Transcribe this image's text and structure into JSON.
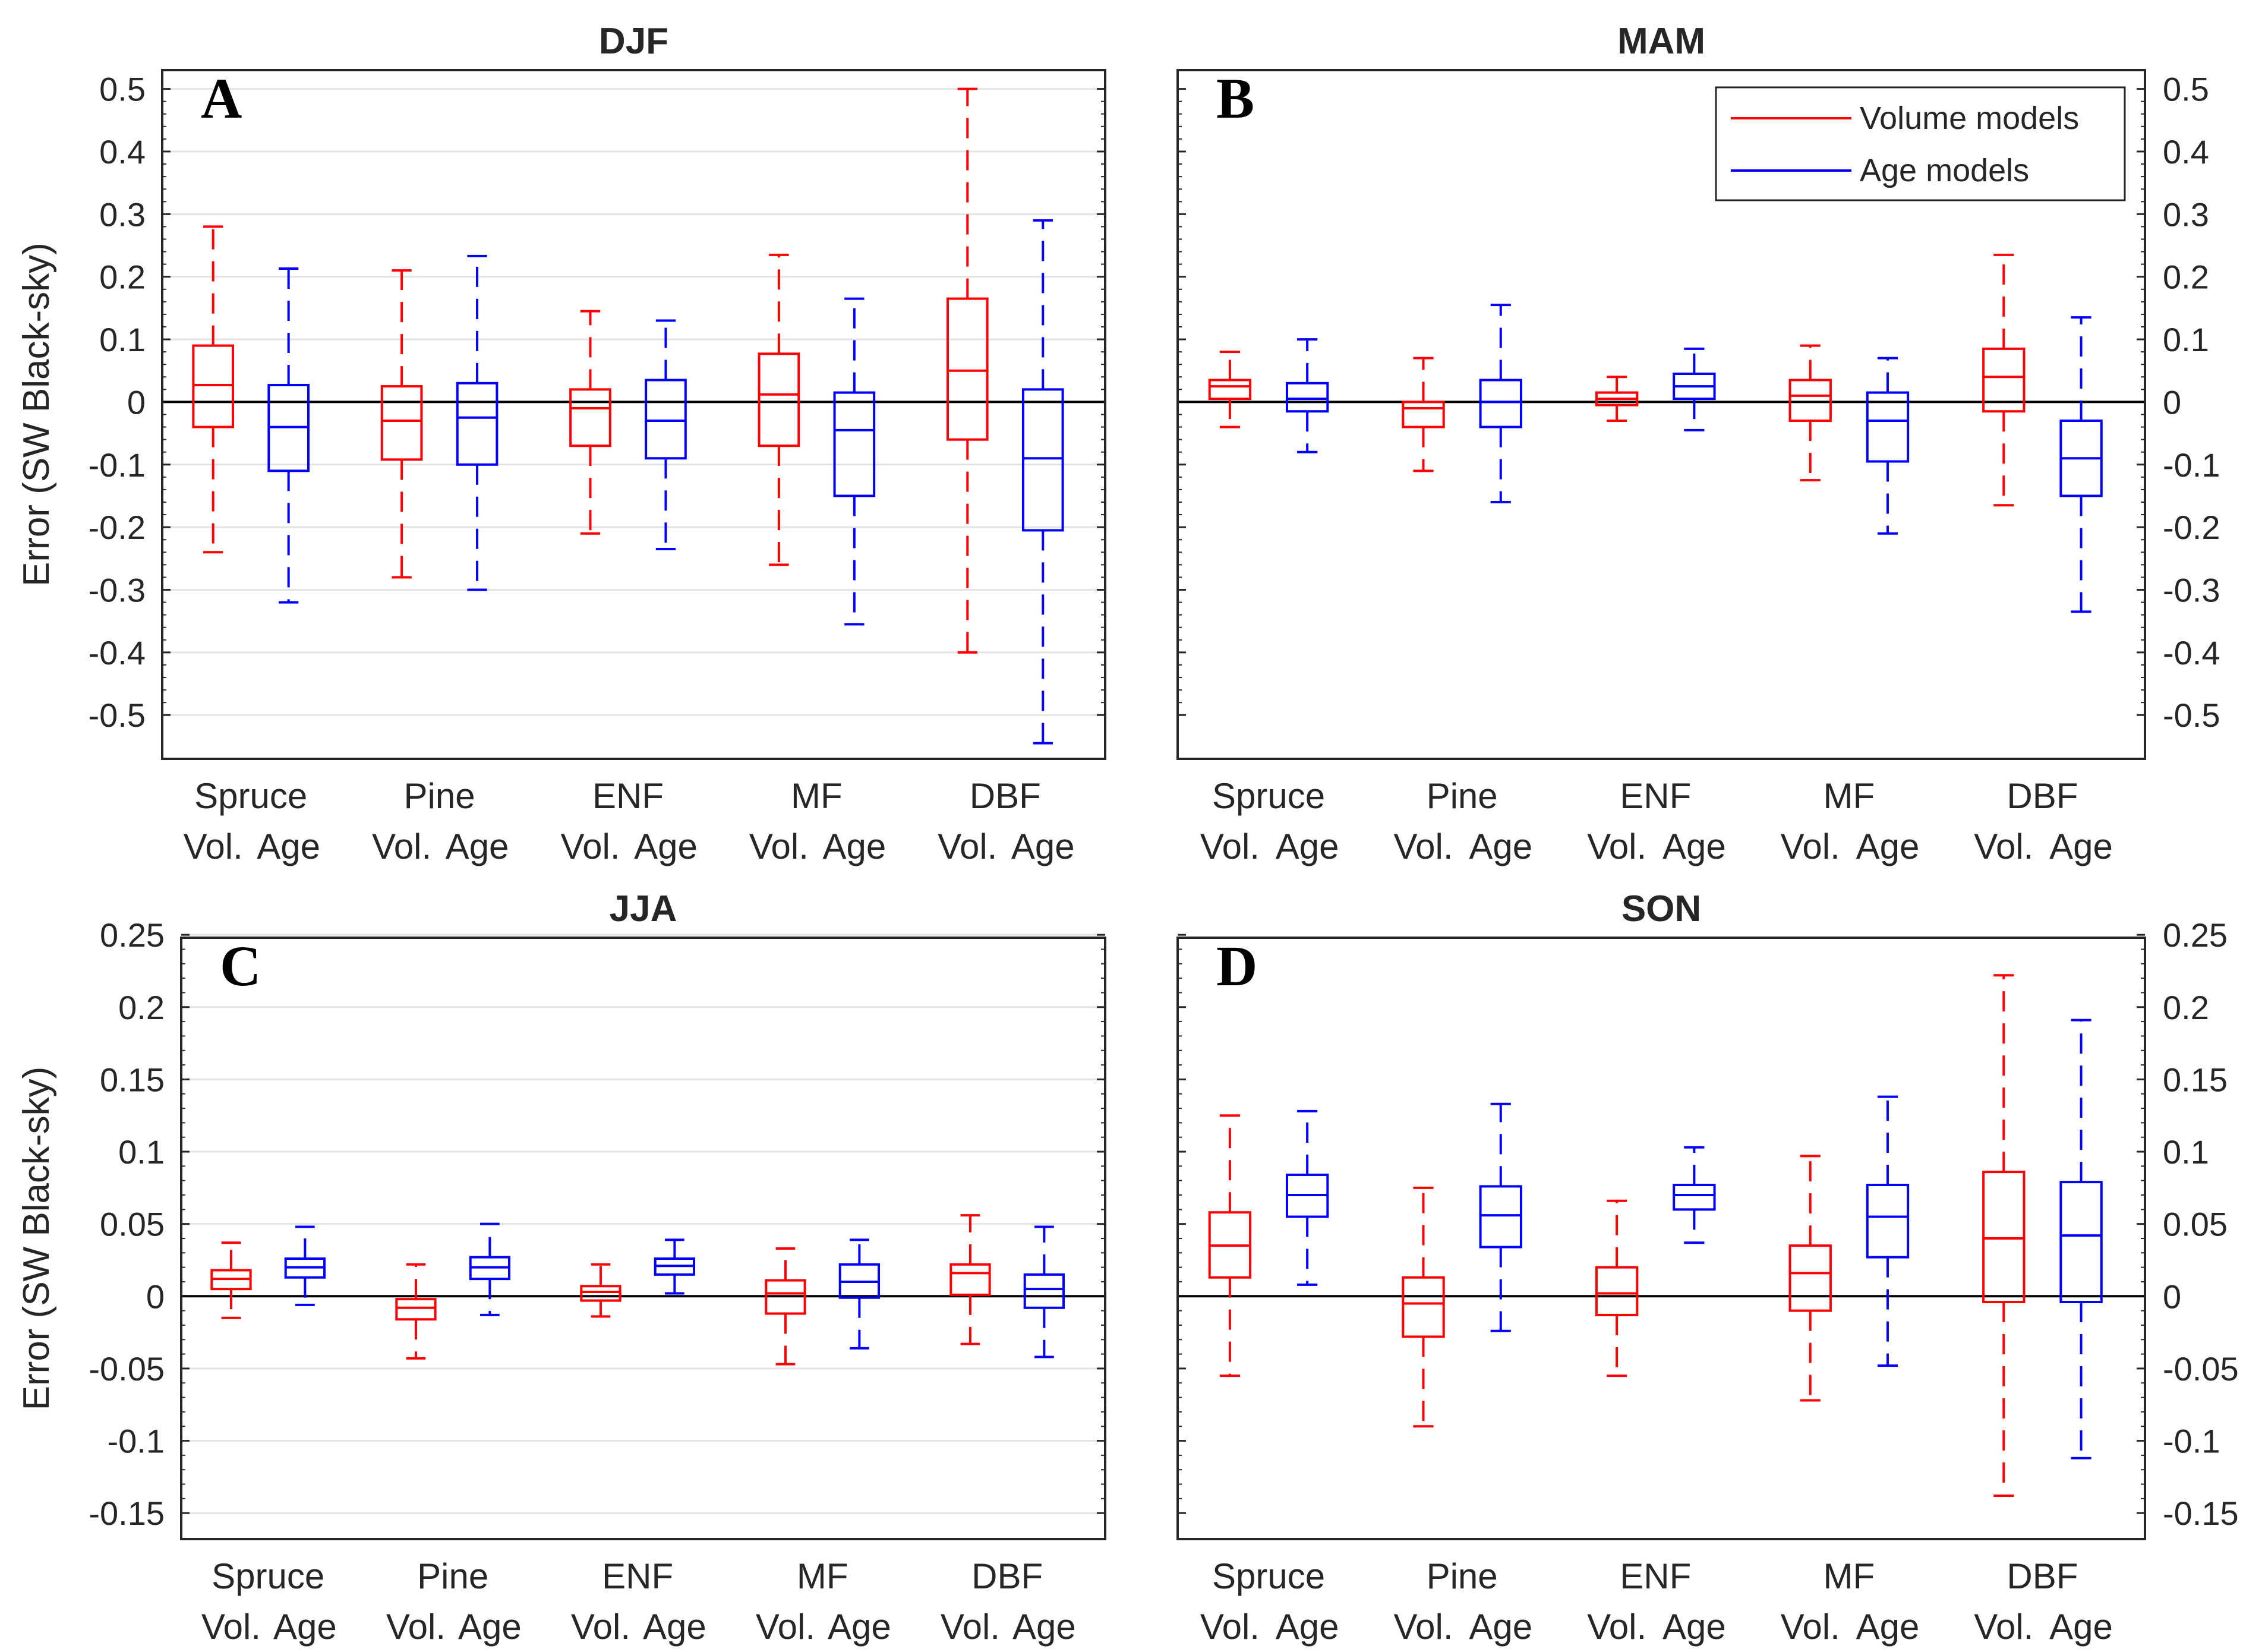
{
  "colors": {
    "volume": "#ff0000",
    "age": "#0000ff",
    "zero_line": "#000000",
    "grid": "#e3e3e3"
  },
  "legend": {
    "items": [
      "Volume models",
      "Age models"
    ],
    "placement": "top-right of panel B"
  },
  "chart_data": [
    {
      "type": "box",
      "letter": "A",
      "title": "DJF",
      "ylabel": "Error (SW Black-sky)",
      "yaxis_side": "left",
      "ylim": [
        -0.57,
        0.53
      ],
      "yticks": [
        -0.5,
        -0.4,
        -0.3,
        -0.2,
        -0.1,
        0,
        0.1,
        0.2,
        0.3,
        0.4,
        0.5
      ],
      "ytick_labels": [
        "-0.5",
        "-0.4",
        "-0.3",
        "-0.2",
        "-0.1",
        "0",
        "0.1",
        "0.2",
        "0.3",
        "0.4",
        "0.5"
      ],
      "grid": true,
      "categories": [
        "Spruce",
        "Pine",
        "ENF",
        "MF",
        "DBF"
      ],
      "subcategories": [
        "Vol.",
        "Age"
      ],
      "series": [
        {
          "name": "Volume models",
          "color": "#ff0000",
          "boxes": [
            {
              "whisker_low": -0.24,
              "q1": -0.04,
              "median": 0.027,
              "q3": 0.09,
              "whisker_high": 0.28
            },
            {
              "whisker_low": -0.28,
              "q1": -0.092,
              "median": -0.03,
              "q3": 0.025,
              "whisker_high": 0.21
            },
            {
              "whisker_low": -0.21,
              "q1": -0.07,
              "median": -0.01,
              "q3": 0.02,
              "whisker_high": 0.145
            },
            {
              "whisker_low": -0.26,
              "q1": -0.07,
              "median": 0.012,
              "q3": 0.077,
              "whisker_high": 0.235
            },
            {
              "whisker_low": -0.4,
              "q1": -0.06,
              "median": 0.05,
              "q3": 0.165,
              "whisker_high": 0.5
            }
          ]
        },
        {
          "name": "Age models",
          "color": "#0000ff",
          "boxes": [
            {
              "whisker_low": -0.32,
              "q1": -0.11,
              "median": -0.04,
              "q3": 0.027,
              "whisker_high": 0.213
            },
            {
              "whisker_low": -0.3,
              "q1": -0.1,
              "median": -0.025,
              "q3": 0.03,
              "whisker_high": 0.233
            },
            {
              "whisker_low": -0.235,
              "q1": -0.09,
              "median": -0.03,
              "q3": 0.035,
              "whisker_high": 0.13
            },
            {
              "whisker_low": -0.355,
              "q1": -0.15,
              "median": -0.045,
              "q3": 0.015,
              "whisker_high": 0.165
            },
            {
              "whisker_low": -0.545,
              "q1": -0.205,
              "median": -0.09,
              "q3": 0.02,
              "whisker_high": 0.29
            }
          ]
        }
      ]
    },
    {
      "type": "box",
      "letter": "B",
      "title": "MAM",
      "ylabel": "",
      "yaxis_side": "right",
      "ylim": [
        -0.57,
        0.53
      ],
      "yticks": [
        -0.5,
        -0.4,
        -0.3,
        -0.2,
        -0.1,
        0,
        0.1,
        0.2,
        0.3,
        0.4,
        0.5
      ],
      "ytick_labels": [
        "-0.5",
        "-0.4",
        "-0.3",
        "-0.2",
        "-0.1",
        "0",
        "0.1",
        "0.2",
        "0.3",
        "0.4",
        "0.5"
      ],
      "grid": false,
      "categories": [
        "Spruce",
        "Pine",
        "ENF",
        "MF",
        "DBF"
      ],
      "subcategories": [
        "Vol.",
        "Age"
      ],
      "series": [
        {
          "name": "Volume models",
          "color": "#ff0000",
          "boxes": [
            {
              "whisker_low": -0.04,
              "q1": 0.005,
              "median": 0.025,
              "q3": 0.035,
              "whisker_high": 0.08
            },
            {
              "whisker_low": -0.11,
              "q1": -0.04,
              "median": -0.01,
              "q3": 0.0,
              "whisker_high": 0.07
            },
            {
              "whisker_low": -0.03,
              "q1": -0.005,
              "median": 0.005,
              "q3": 0.015,
              "whisker_high": 0.04
            },
            {
              "whisker_low": -0.125,
              "q1": -0.03,
              "median": 0.01,
              "q3": 0.035,
              "whisker_high": 0.09
            },
            {
              "whisker_low": -0.165,
              "q1": -0.015,
              "median": 0.04,
              "q3": 0.085,
              "whisker_high": 0.235
            }
          ]
        },
        {
          "name": "Age models",
          "color": "#0000ff",
          "boxes": [
            {
              "whisker_low": -0.08,
              "q1": -0.015,
              "median": 0.005,
              "q3": 0.03,
              "whisker_high": 0.1
            },
            {
              "whisker_low": -0.16,
              "q1": -0.04,
              "median": 0.0,
              "q3": 0.035,
              "whisker_high": 0.155
            },
            {
              "whisker_low": -0.045,
              "q1": 0.005,
              "median": 0.025,
              "q3": 0.045,
              "whisker_high": 0.085
            },
            {
              "whisker_low": -0.21,
              "q1": -0.095,
              "median": -0.03,
              "q3": 0.015,
              "whisker_high": 0.07
            },
            {
              "whisker_low": -0.335,
              "q1": -0.15,
              "median": -0.09,
              "q3": -0.03,
              "whisker_high": 0.135
            }
          ]
        }
      ]
    },
    {
      "type": "box",
      "letter": "C",
      "title": "JJA",
      "ylabel": "Error (SW Black-sky)",
      "yaxis_side": "left",
      "ylim": [
        -0.168,
        0.248
      ],
      "yticks": [
        -0.15,
        -0.1,
        -0.05,
        0,
        0.05,
        0.1,
        0.15,
        0.2,
        0.25
      ],
      "ytick_labels": [
        "-0.15",
        "-0.1",
        "-0.05",
        "0",
        "0.05",
        "0.1",
        "0.15",
        "0.2",
        "0.25"
      ],
      "grid": true,
      "categories": [
        "Spruce",
        "Pine",
        "ENF",
        "MF",
        "DBF"
      ],
      "subcategories": [
        "Vol.",
        "Age"
      ],
      "series": [
        {
          "name": "Volume models",
          "color": "#ff0000",
          "boxes": [
            {
              "whisker_low": -0.015,
              "q1": 0.005,
              "median": 0.012,
              "q3": 0.018,
              "whisker_high": 0.037
            },
            {
              "whisker_low": -0.043,
              "q1": -0.016,
              "median": -0.008,
              "q3": -0.002,
              "whisker_high": 0.022
            },
            {
              "whisker_low": -0.014,
              "q1": -0.003,
              "median": 0.003,
              "q3": 0.007,
              "whisker_high": 0.022
            },
            {
              "whisker_low": -0.047,
              "q1": -0.012,
              "median": 0.002,
              "q3": 0.011,
              "whisker_high": 0.033
            },
            {
              "whisker_low": -0.033,
              "q1": 0.001,
              "median": 0.016,
              "q3": 0.022,
              "whisker_high": 0.056
            }
          ]
        },
        {
          "name": "Age models",
          "color": "#0000ff",
          "boxes": [
            {
              "whisker_low": -0.006,
              "q1": 0.013,
              "median": 0.02,
              "q3": 0.026,
              "whisker_high": 0.048
            },
            {
              "whisker_low": -0.013,
              "q1": 0.012,
              "median": 0.02,
              "q3": 0.027,
              "whisker_high": 0.05
            },
            {
              "whisker_low": 0.002,
              "q1": 0.015,
              "median": 0.021,
              "q3": 0.026,
              "whisker_high": 0.039
            },
            {
              "whisker_low": -0.036,
              "q1": -0.001,
              "median": 0.01,
              "q3": 0.022,
              "whisker_high": 0.039
            },
            {
              "whisker_low": -0.042,
              "q1": -0.008,
              "median": 0.005,
              "q3": 0.015,
              "whisker_high": 0.048
            }
          ]
        }
      ]
    },
    {
      "type": "box",
      "letter": "D",
      "title": "SON",
      "ylabel": "",
      "yaxis_side": "right",
      "ylim": [
        -0.168,
        0.248
      ],
      "yticks": [
        -0.15,
        -0.1,
        -0.05,
        0,
        0.05,
        0.1,
        0.15,
        0.2,
        0.25
      ],
      "ytick_labels": [
        "-0.15",
        "-0.1",
        "-0.05",
        "0",
        "0.05",
        "0.1",
        "0.15",
        "0.2",
        "0.25"
      ],
      "grid": false,
      "categories": [
        "Spruce",
        "Pine",
        "ENF",
        "MF",
        "DBF"
      ],
      "subcategories": [
        "Vol.",
        "Age"
      ],
      "series": [
        {
          "name": "Volume models",
          "color": "#ff0000",
          "boxes": [
            {
              "whisker_low": -0.055,
              "q1": 0.013,
              "median": 0.035,
              "q3": 0.058,
              "whisker_high": 0.125
            },
            {
              "whisker_low": -0.09,
              "q1": -0.028,
              "median": -0.005,
              "q3": 0.013,
              "whisker_high": 0.075
            },
            {
              "whisker_low": -0.055,
              "q1": -0.013,
              "median": 0.002,
              "q3": 0.02,
              "whisker_high": 0.066
            },
            {
              "whisker_low": -0.072,
              "q1": -0.01,
              "median": 0.016,
              "q3": 0.035,
              "whisker_high": 0.097
            },
            {
              "whisker_low": -0.138,
              "q1": -0.004,
              "median": 0.04,
              "q3": 0.086,
              "whisker_high": 0.222
            }
          ]
        },
        {
          "name": "Age models",
          "color": "#0000ff",
          "boxes": [
            {
              "whisker_low": 0.008,
              "q1": 0.055,
              "median": 0.07,
              "q3": 0.084,
              "whisker_high": 0.128
            },
            {
              "whisker_low": -0.024,
              "q1": 0.034,
              "median": 0.056,
              "q3": 0.076,
              "whisker_high": 0.133
            },
            {
              "whisker_low": 0.037,
              "q1": 0.06,
              "median": 0.07,
              "q3": 0.077,
              "whisker_high": 0.103
            },
            {
              "whisker_low": -0.048,
              "q1": 0.027,
              "median": 0.055,
              "q3": 0.077,
              "whisker_high": 0.138
            },
            {
              "whisker_low": -0.112,
              "q1": -0.004,
              "median": 0.042,
              "q3": 0.079,
              "whisker_high": 0.191
            }
          ]
        }
      ]
    }
  ]
}
